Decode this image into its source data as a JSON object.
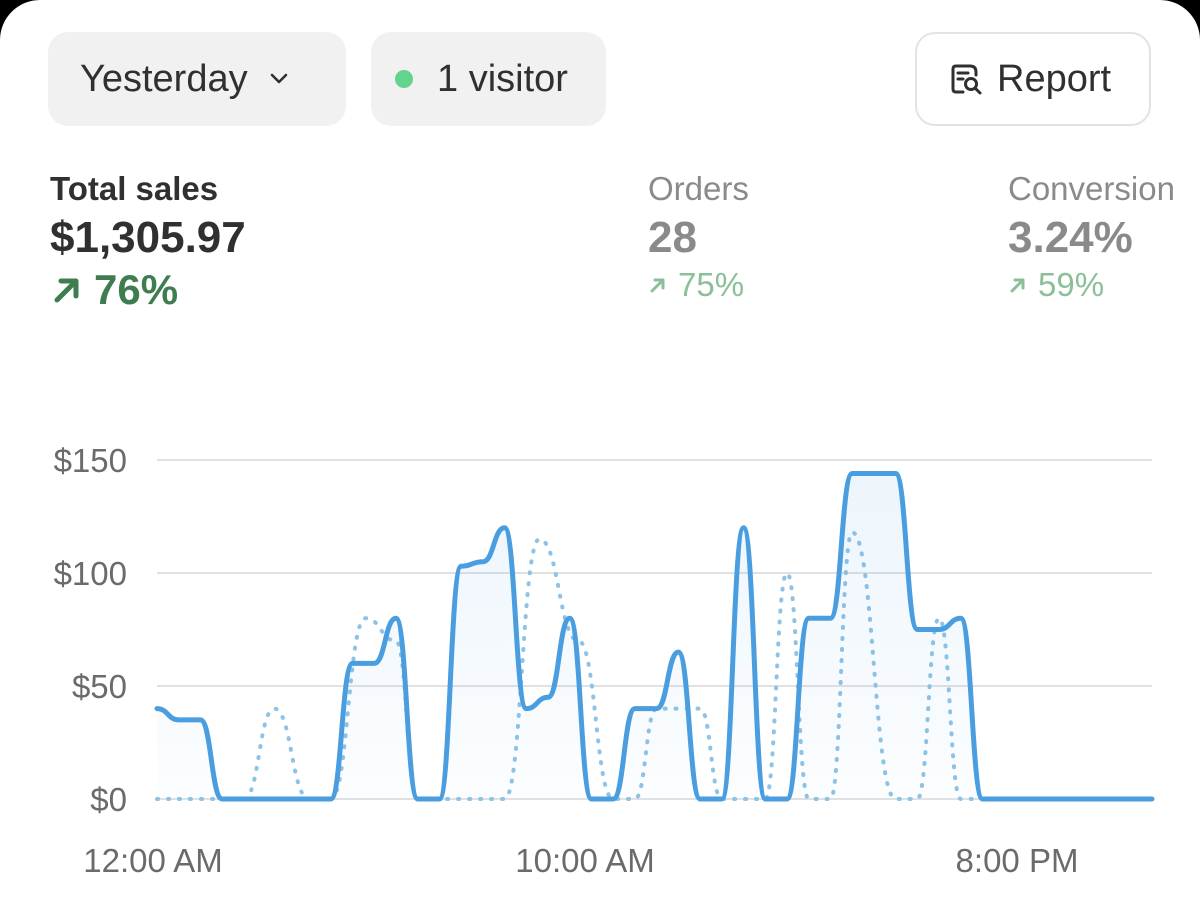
{
  "filters": {
    "date_label": "Yesterday",
    "visitors_label": "1 visitor",
    "report_label": "Report",
    "date_icon": "chevron-down-icon",
    "report_icon": "report-search-icon",
    "visitor_dot_color": "#62d48e"
  },
  "metrics": {
    "sales": {
      "label": "Total sales",
      "value": "$1,305.97",
      "change": "76%"
    },
    "orders": {
      "label": "Orders",
      "value": "28",
      "change": "75%"
    },
    "conversion": {
      "label": "Conversion",
      "value": "3.24%",
      "change": "59%"
    }
  },
  "chart_data": {
    "type": "line",
    "ylim": [
      0,
      150
    ],
    "y_ticks": [
      "$0",
      "$50",
      "$100",
      "$150"
    ],
    "y_tick_values": [
      0,
      50,
      100,
      150
    ],
    "x_tick_labels": [
      "12:00 AM",
      "10:00 AM",
      "8:00 PM"
    ],
    "x_tick_positions": [
      0,
      10,
      20
    ],
    "grid": true,
    "series": [
      {
        "style": "solid",
        "color": "#4a9ee0",
        "fill": true,
        "x": [
          0,
          0.5,
          1,
          1.5,
          2,
          3,
          3.5,
          4,
          4.5,
          5,
          5.5,
          6,
          6.5,
          7,
          7.5,
          8,
          8.5,
          9,
          9.5,
          10,
          10.5,
          11,
          11.5,
          12,
          12.5,
          13,
          13.5,
          14,
          14.5,
          15,
          15.5,
          16,
          16.5,
          17,
          17.5,
          18,
          18.5,
          19,
          19.5,
          20,
          20.5,
          21,
          21.5,
          22,
          22.6,
          22.9
        ],
        "y": [
          40,
          35,
          35,
          0,
          0,
          0,
          0,
          0,
          60,
          60,
          80,
          0,
          0,
          103,
          105,
          120,
          40,
          45,
          80,
          0,
          0,
          40,
          40,
          65,
          0,
          0,
          120,
          0,
          0,
          80,
          80,
          144,
          144,
          144,
          75,
          75,
          80,
          0,
          0,
          0,
          0,
          0,
          0,
          0,
          0,
          0
        ]
      },
      {
        "style": "dotted",
        "color": "#8ec3e6",
        "fill": false,
        "x": [
          0,
          1,
          2,
          2.7,
          3.5,
          4,
          4.8,
          5.5,
          6,
          7,
          8,
          8.8,
          9.7,
          10.5,
          11,
          11.5,
          12,
          12.5,
          13,
          14,
          14.5,
          15,
          15.5,
          16,
          17,
          17.5,
          18,
          18.5,
          19,
          19.5,
          20,
          20.5,
          21,
          21.5,
          22,
          22.6,
          22.9
        ],
        "y": [
          0,
          0,
          0,
          40,
          0,
          0,
          80,
          70,
          0,
          0,
          0,
          115,
          70,
          0,
          0,
          40,
          40,
          40,
          0,
          0,
          100,
          0,
          0,
          118,
          0,
          0,
          80,
          0,
          0,
          0,
          0,
          0,
          0,
          0,
          0,
          0,
          0
        ]
      }
    ]
  }
}
